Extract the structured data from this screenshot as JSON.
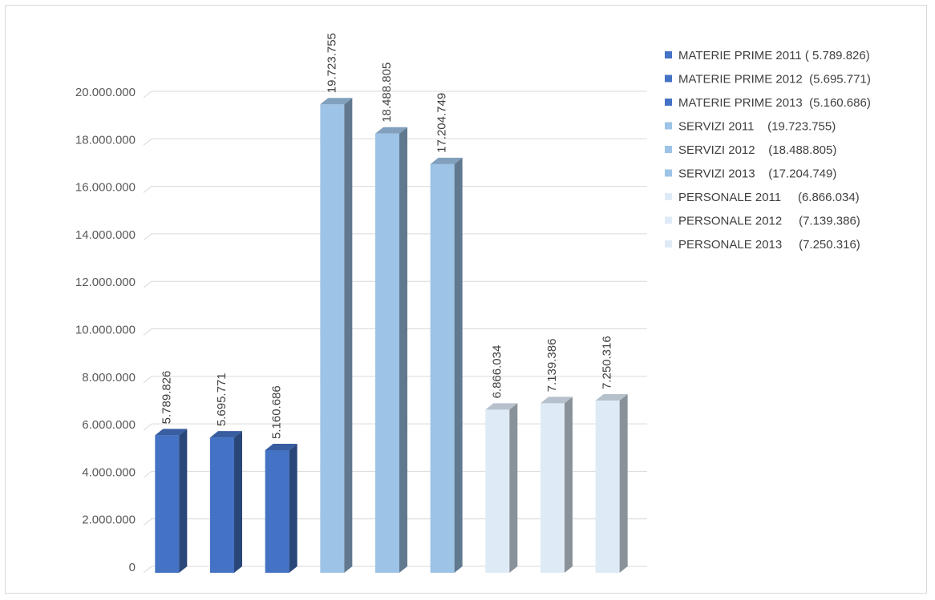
{
  "chart_data": {
    "type": "bar",
    "categories": [
      "MATERIE PRIME 2011",
      "MATERIE PRIME 2012",
      "MATERIE PRIME 2013",
      "SERVIZI 2011",
      "SERVIZI 2012",
      "SERVIZI 2013",
      "PERSONALE 2011",
      "PERSONALE 2012",
      "PERSONALE 2013"
    ],
    "values": [
      5789826,
      5695771,
      5160686,
      19723755,
      18488805,
      17204749,
      6866034,
      7139386,
      7250316
    ],
    "data_labels": [
      "5.789.826",
      "5.695.771",
      "5.160.686",
      "19.723.755",
      "18.488.805",
      "17.204.749",
      "6.866.034",
      "7.139.386",
      "7.250.316"
    ],
    "colors": [
      "#4472c4",
      "#4472c4",
      "#4472c4",
      "#9dc3e6",
      "#9dc3e6",
      "#9dc3e6",
      "#deebf7",
      "#deebf7",
      "#deebf7"
    ],
    "ylim": [
      0,
      20000000
    ],
    "y_ticks": [
      0,
      2000000,
      4000000,
      6000000,
      8000000,
      10000000,
      12000000,
      14000000,
      16000000,
      18000000,
      20000000
    ],
    "y_tick_labels": [
      "0",
      "2.000.000",
      "4.000.000",
      "6.000.000",
      "8.000.000",
      "10.000.000",
      "12.000.000",
      "14.000.000",
      "16.000.000",
      "18.000.000",
      "20.000.000"
    ],
    "legend": [
      {
        "label": "MATERIE PRIME 2011 ( 5.789.826)",
        "color": "#4472c4"
      },
      {
        "label": "MATERIE PRIME 2012  (5.695.771)",
        "color": "#4472c4"
      },
      {
        "label": "MATERIE PRIME 2013  (5.160.686)",
        "color": "#4472c4"
      },
      {
        "label": "SERVIZI 2011    (19.723.755)",
        "color": "#9dc3e6"
      },
      {
        "label": "SERVIZI 2012    (18.488.805)",
        "color": "#9dc3e6"
      },
      {
        "label": "SERVIZI 2013    (17.204.749)",
        "color": "#9dc3e6"
      },
      {
        "label": "PERSONALE 2011     (6.866.034)",
        "color": "#deebf7"
      },
      {
        "label": "PERSONALE 2012     (7.139.386)",
        "color": "#deebf7"
      },
      {
        "label": "PERSONALE 2013     (7.250.316)",
        "color": "#deebf7"
      }
    ],
    "legend_position": "top-right",
    "grid": true,
    "style": "3d-column"
  }
}
